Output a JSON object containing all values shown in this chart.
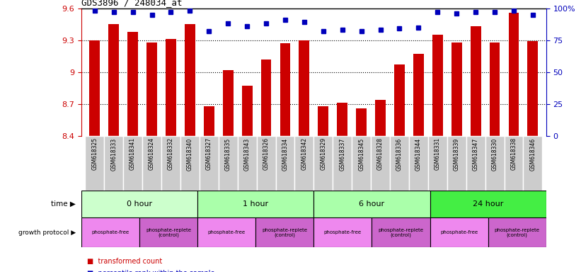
{
  "title": "GDS3896 / 248034_at",
  "samples": [
    "GSM618325",
    "GSM618333",
    "GSM618341",
    "GSM618324",
    "GSM618332",
    "GSM618340",
    "GSM618327",
    "GSM618335",
    "GSM618343",
    "GSM618326",
    "GSM618334",
    "GSM618342",
    "GSM618329",
    "GSM618337",
    "GSM618345",
    "GSM618328",
    "GSM618336",
    "GSM618344",
    "GSM618331",
    "GSM618339",
    "GSM618347",
    "GSM618330",
    "GSM618338",
    "GSM618346"
  ],
  "bar_values": [
    9.3,
    9.45,
    9.38,
    9.28,
    9.31,
    9.45,
    8.68,
    9.02,
    8.87,
    9.12,
    9.27,
    9.3,
    8.68,
    8.71,
    8.66,
    8.74,
    9.07,
    9.17,
    9.35,
    9.28,
    9.43,
    9.28,
    9.56,
    9.29
  ],
  "percentile_values": [
    98,
    97,
    97,
    95,
    97,
    98,
    82,
    88,
    86,
    88,
    91,
    89,
    82,
    83,
    82,
    83,
    84,
    85,
    97,
    96,
    97,
    97,
    98,
    95
  ],
  "ylim_left": [
    8.4,
    9.6
  ],
  "ylim_right": [
    0,
    100
  ],
  "yticks_left": [
    8.4,
    8.7,
    9.0,
    9.3,
    9.6
  ],
  "ytick_labels_left": [
    "8.4",
    "8.7",
    "9",
    "9.3",
    "9.6"
  ],
  "yticks_right": [
    0,
    25,
    50,
    75,
    100
  ],
  "ytick_labels_right": [
    "0",
    "25",
    "50",
    "75",
    "100%"
  ],
  "bar_color": "#cc0000",
  "dot_color": "#0000bb",
  "grid_color": "#000000",
  "time_groups": [
    {
      "label": "0 hour",
      "start": 0,
      "end": 6,
      "color": "#ccffcc"
    },
    {
      "label": "1 hour",
      "start": 6,
      "end": 12,
      "color": "#aaffaa"
    },
    {
      "label": "6 hour",
      "start": 12,
      "end": 18,
      "color": "#aaffaa"
    },
    {
      "label": "24 hour",
      "start": 18,
      "end": 24,
      "color": "#44ee44"
    }
  ],
  "protocol_groups": [
    {
      "label": "phosphate-free",
      "start": 0,
      "end": 3,
      "is_control": false
    },
    {
      "label": "phosphate-replete\n(control)",
      "start": 3,
      "end": 6,
      "is_control": true
    },
    {
      "label": "phosphate-free",
      "start": 6,
      "end": 9,
      "is_control": false
    },
    {
      "label": "phosphate-replete\n(control)",
      "start": 9,
      "end": 12,
      "is_control": true
    },
    {
      "label": "phosphate-free",
      "start": 12,
      "end": 15,
      "is_control": false
    },
    {
      "label": "phosphate-replete\n(control)",
      "start": 15,
      "end": 18,
      "is_control": true
    },
    {
      "label": "phosphate-free",
      "start": 18,
      "end": 21,
      "is_control": false
    },
    {
      "label": "phosphate-replete\n(control)",
      "start": 21,
      "end": 24,
      "is_control": true
    }
  ],
  "protocol_color_free": "#ee88ee",
  "protocol_color_control": "#cc66cc",
  "bg_color": "#ffffff",
  "tick_color_left": "#cc0000",
  "tick_color_right": "#0000bb",
  "label_area_color": "#cccccc",
  "label_divider_color": "#ffffff"
}
